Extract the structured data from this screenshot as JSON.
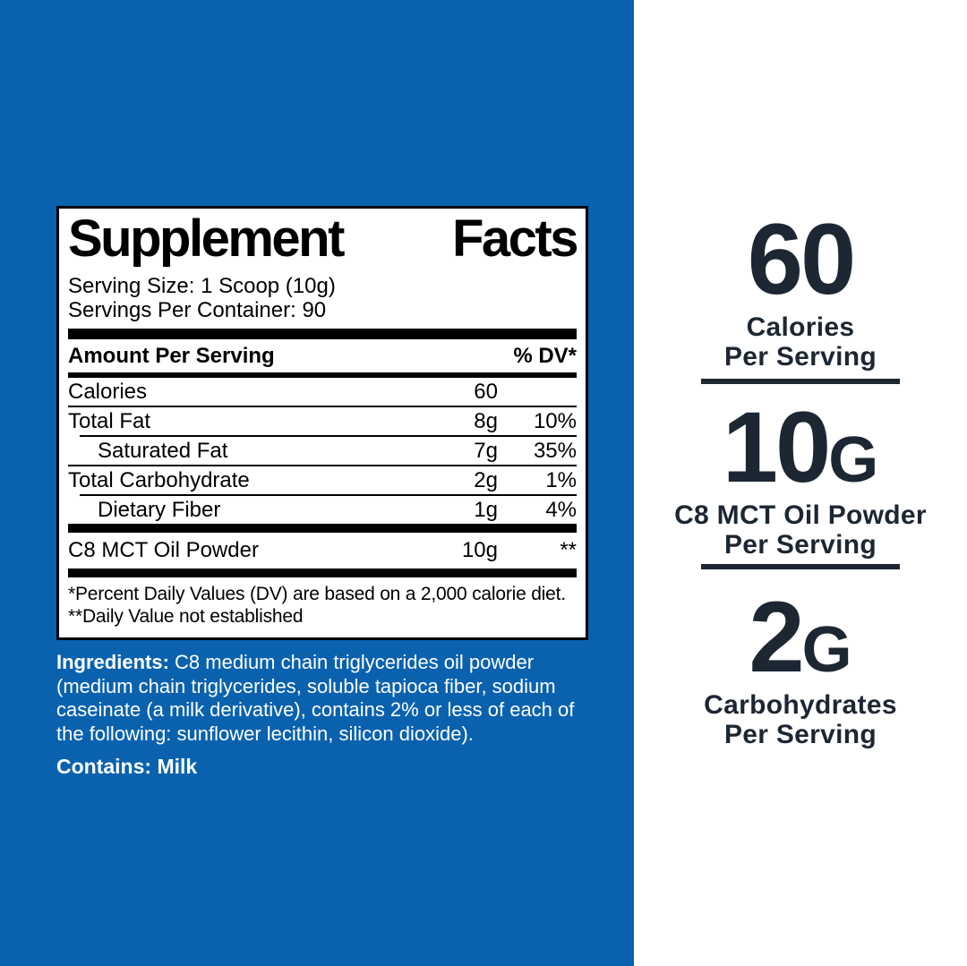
{
  "facts_panel": {
    "title_word1": "Supplement",
    "title_word2": "Facts",
    "serving_size": "Serving Size: 1 Scoop (10g)",
    "servings_per_container": "Servings Per Container: 90",
    "header": {
      "amount_label": "Amount Per Serving",
      "dv_label": "% DV*"
    },
    "rows": [
      {
        "name": "Calories",
        "amount": "60",
        "dv": ""
      },
      {
        "name": "Total Fat",
        "amount": "8g",
        "dv": "10%"
      },
      {
        "name": "Saturated Fat",
        "amount": "7g",
        "dv": "35%"
      },
      {
        "name": "Total Carbohydrate",
        "amount": "2g",
        "dv": "1%"
      },
      {
        "name": "Dietary Fiber",
        "amount": "1g",
        "dv": "4%"
      }
    ],
    "extra_row": {
      "name": "C8 MCT Oil Powder",
      "amount": "10g",
      "dv": "**"
    },
    "footnote_dv": "*Percent Daily Values (DV) are based on a 2,000 calorie diet.",
    "footnote_nd": "**Daily Value not established"
  },
  "ingredients": {
    "label": "Ingredients:",
    "text": " C8 medium chain triglycerides oil powder (medium chain triglycerides, soluble tapioca fiber, sodium caseinate (a milk derivative), contains 2% or less of each of the following: sunflower lecithin, silicon dioxide).",
    "contains": "Contains: Milk"
  },
  "highlights": [
    {
      "value": "60",
      "unit": "",
      "line1": "Calories",
      "line2": "Per Serving"
    },
    {
      "value": "10",
      "unit": "G",
      "line1": "C8 MCT Oil Powder",
      "line2": "Per Serving"
    },
    {
      "value": "2",
      "unit": "G",
      "line1": "Carbohydrates",
      "line2": "Per Serving"
    }
  ],
  "colors": {
    "background_blue": "#0a62ae",
    "highlight_navy": "#1d2733",
    "panel_black": "#000000",
    "panel_white": "#ffffff"
  }
}
